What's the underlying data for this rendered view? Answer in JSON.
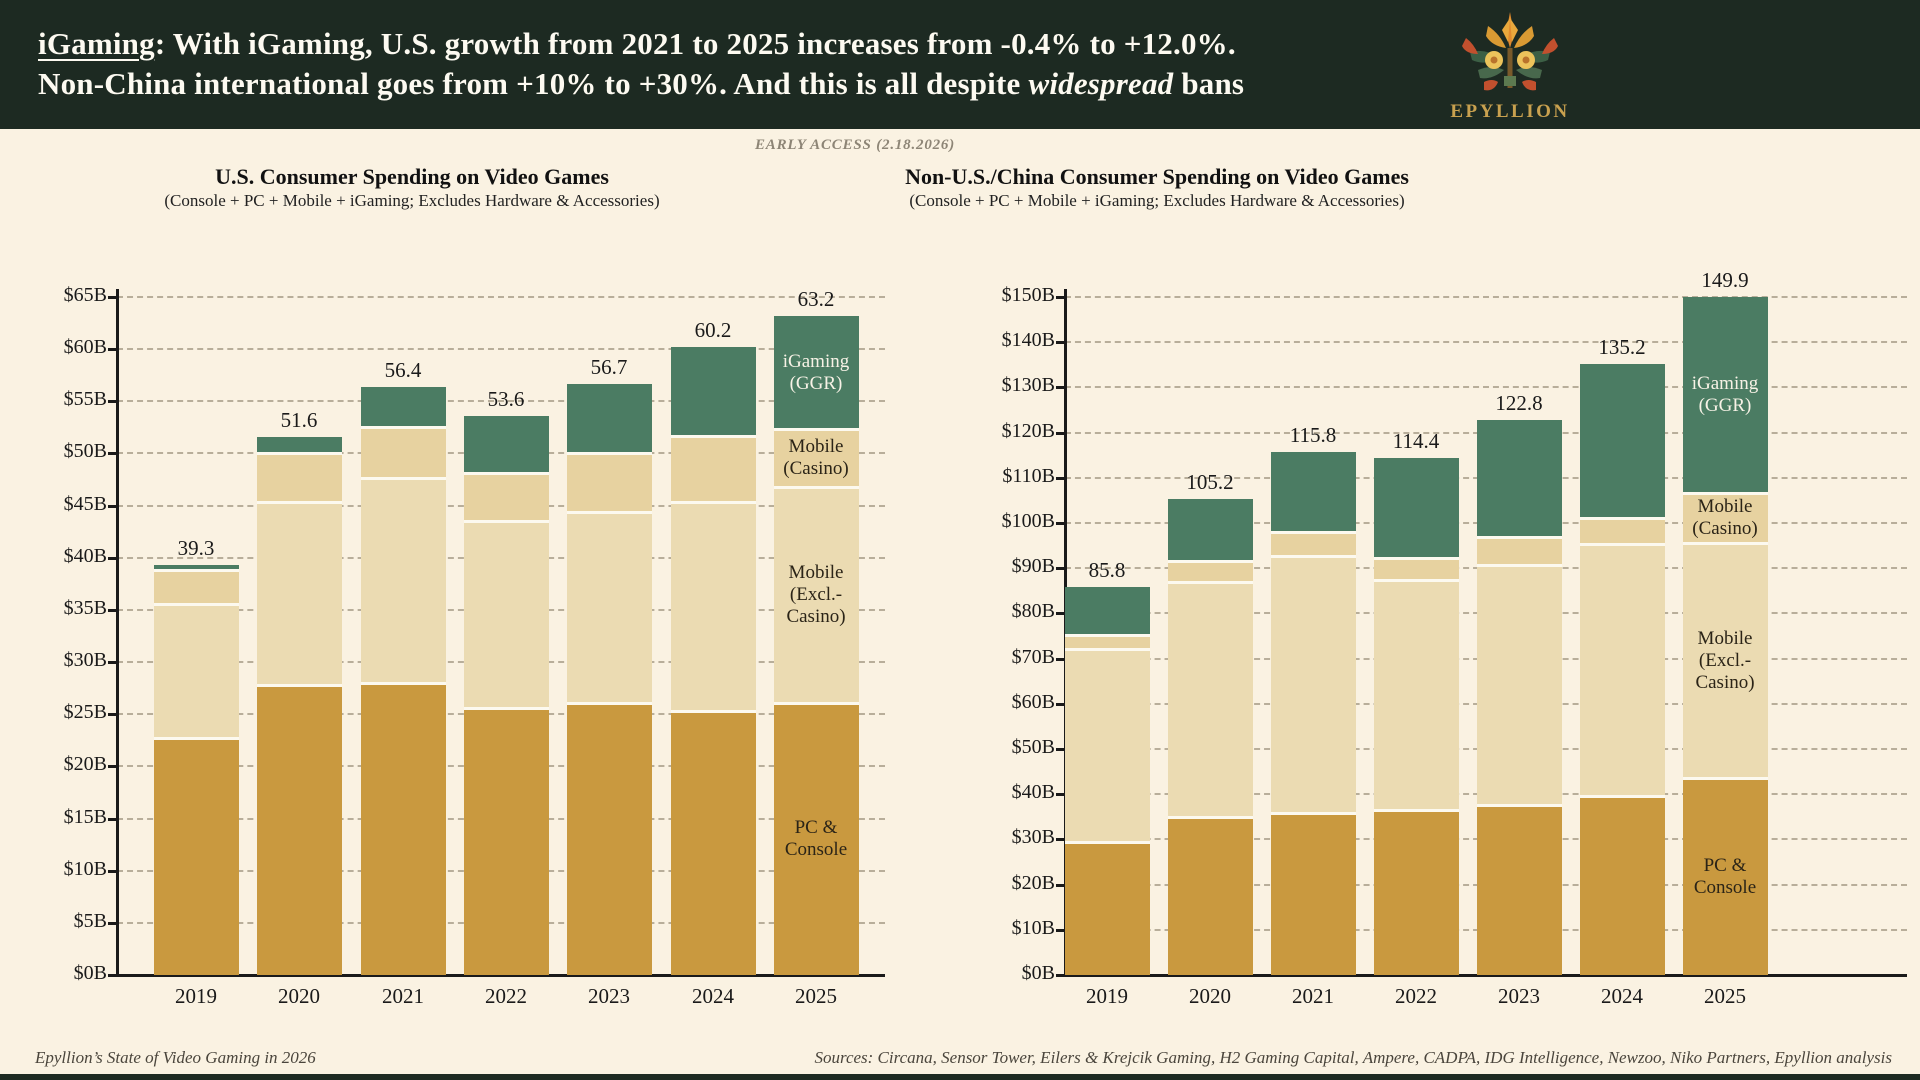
{
  "header": {
    "line1_underlined": "iGaming",
    "line1_rest": ": With iGaming, U.S. growth from 2021 to 2025 increases from -0.4% to +12.0%.",
    "line2_pre": "Non-China international goes from +10% to +30%. And this is all despite ",
    "line2_italic": "widespread",
    "line2_post": " bans",
    "brand": "EPYLLION",
    "early_access": "EARLY ACCESS (2.18.2026)"
  },
  "colors": {
    "header_bg": "#1d2a22",
    "page_bg": "#faf2e2",
    "brand_gold": "#c9a14f",
    "pc_console": "#c9993f",
    "mobile_excl": "#ebdbb2",
    "mobile_casino": "#e7d2a0",
    "igaming": "#4b7c63",
    "grid": "#b8ae9a",
    "axis": "#1a1a1a",
    "seg_label_light": "#f7f2e6",
    "seg_label_dark": "#2b2417"
  },
  "footer": {
    "left": "Epyllion’s State of Video Gaming in 2026",
    "right": "Sources: Circana, Sensor Tower, Eilers & Krejcik Gaming, H2 Gaming Capital, Ampere, CADPA, IDG Intelligence, Newzoo, Niko Partners, Epyllion analysis"
  },
  "chart_data": [
    {
      "type": "bar",
      "stacked": true,
      "title": "U.S. Consumer Spending on Video Games",
      "subtitle": "(Console + PC + Mobile + iGaming; Excludes Hardware & Accessories)",
      "categories": [
        "2019",
        "2020",
        "2021",
        "2022",
        "2023",
        "2024",
        "2025"
      ],
      "series": [
        {
          "name": "PC & Console",
          "color_key": "pc_console",
          "values": [
            22.7,
            27.8,
            28.0,
            25.6,
            26.1,
            25.3,
            26.1
          ]
        },
        {
          "name": "Mobile (Excl.-Casino)",
          "color_key": "mobile_excl",
          "values": [
            12.9,
            17.5,
            19.6,
            17.9,
            18.3,
            20.0,
            20.7
          ]
        },
        {
          "name": "Mobile (Casino)",
          "color_key": "mobile_casino",
          "values": [
            3.2,
            4.7,
            4.9,
            4.6,
            5.6,
            6.4,
            5.5
          ]
        },
        {
          "name": "iGaming (GGR)",
          "color_key": "igaming",
          "values": [
            0.5,
            1.6,
            3.9,
            5.5,
            6.7,
            8.5,
            10.9
          ]
        }
      ],
      "totals": [
        "39.3",
        "51.6",
        "56.4",
        "53.6",
        "56.7",
        "60.2",
        "63.2"
      ],
      "ylim": [
        0,
        65
      ],
      "ystep": 5,
      "tick_labels": [
        "$0B",
        "$5B",
        "$10B",
        "$15B",
        "$20B",
        "$25B",
        "$30B",
        "$35B",
        "$40B",
        "$45B",
        "$50B",
        "$55B",
        "$60B",
        "$65B"
      ],
      "grid": true,
      "segment_labels": [
        {
          "series": 3,
          "lines": "iGaming\n(GGR)",
          "color_key": "seg_label_light"
        },
        {
          "series": 2,
          "lines": "Mobile\n(Casino)",
          "color_key": "seg_label_dark"
        },
        {
          "series": 1,
          "lines": "Mobile\n(Excl.-\nCasino)",
          "color_key": "seg_label_dark"
        },
        {
          "series": 0,
          "lines": "PC &\nConsole",
          "color_key": "seg_label_dark"
        }
      ]
    },
    {
      "type": "bar",
      "stacked": true,
      "title": "Non-U.S./China Consumer Spending on Video Games",
      "subtitle": "(Console + PC + Mobile + iGaming; Excludes Hardware & Accessories)",
      "categories": [
        "2019",
        "2020",
        "2021",
        "2022",
        "2023",
        "2024",
        "2025"
      ],
      "series": [
        {
          "name": "PC & Console",
          "color_key": "pc_console",
          "values": [
            29.5,
            35.0,
            35.9,
            36.4,
            37.6,
            39.5,
            43.5
          ]
        },
        {
          "name": "Mobile (Excl.-Casino)",
          "color_key": "mobile_excl",
          "values": [
            42.6,
            52.0,
            56.7,
            51.0,
            53.0,
            55.8,
            52.1
          ]
        },
        {
          "name": "Mobile (Casino)",
          "color_key": "mobile_casino",
          "values": [
            3.2,
            4.7,
            5.4,
            4.9,
            6.2,
            5.8,
            11.1
          ]
        },
        {
          "name": "iGaming (GGR)",
          "color_key": "igaming",
          "values": [
            10.5,
            13.5,
            17.8,
            22.1,
            26.0,
            34.1,
            43.2
          ]
        }
      ],
      "totals": [
        "85.8",
        "105.2",
        "115.8",
        "114.4",
        "122.8",
        "135.2",
        "149.9"
      ],
      "ylim": [
        0,
        150
      ],
      "ystep": 10,
      "tick_labels": [
        "$0B",
        "$10B",
        "$20B",
        "$30B",
        "$40B",
        "$50B",
        "$60B",
        "$70B",
        "$80B",
        "$90B",
        "$100B",
        "$110B",
        "$120B",
        "$130B",
        "$140B",
        "$150B"
      ],
      "grid": true,
      "segment_labels": [
        {
          "series": 3,
          "lines": "iGaming\n(GGR)",
          "color_key": "seg_label_light"
        },
        {
          "series": 2,
          "lines": "Mobile\n(Casino)",
          "color_key": "seg_label_dark"
        },
        {
          "series": 1,
          "lines": "Mobile\n(Excl.-\nCasino)",
          "color_key": "seg_label_dark"
        },
        {
          "series": 0,
          "lines": "PC &\nConsole",
          "color_key": "seg_label_dark"
        }
      ]
    }
  ]
}
